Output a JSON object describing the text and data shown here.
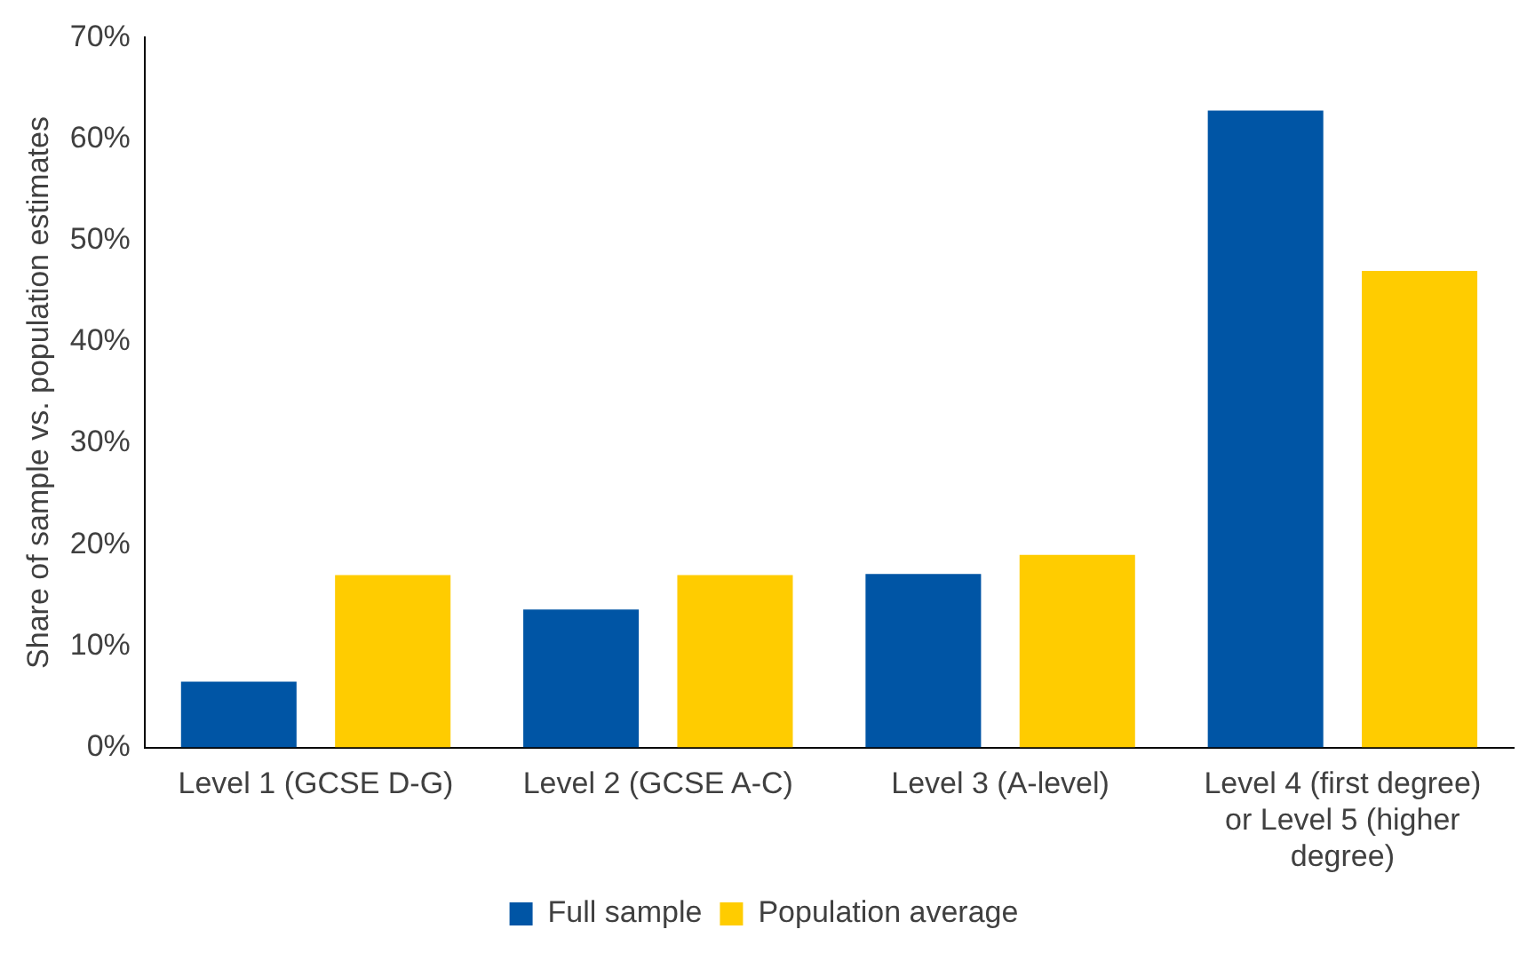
{
  "chart_data": {
    "type": "bar",
    "ylabel": "Share of sample vs. population estimates",
    "categories": [
      "Level 1 (GCSE D-G)",
      "Level 2 (GCSE A-C)",
      "Level 3 (A-level)",
      "Level 4 (first degree) or Level 5 (higher degree)"
    ],
    "series": [
      {
        "name": "Full sample",
        "color": "#0055a5",
        "values": [
          6.5,
          13.6,
          17.1,
          62.8
        ]
      },
      {
        "name": "Population average",
        "color": "#ffcc00",
        "values": [
          17,
          17,
          19,
          47
        ]
      }
    ],
    "ylim": [
      0,
      70
    ],
    "yticks": [
      {
        "value": 0,
        "label": "0%"
      },
      {
        "value": 10,
        "label": "10%"
      },
      {
        "value": 20,
        "label": "20%"
      },
      {
        "value": 30,
        "label": "30%"
      },
      {
        "value": 40,
        "label": "40%"
      },
      {
        "value": 50,
        "label": "50%"
      },
      {
        "value": 60,
        "label": "60%"
      },
      {
        "value": 70,
        "label": "70%"
      }
    ],
    "grid": false,
    "legend": "bottom"
  }
}
